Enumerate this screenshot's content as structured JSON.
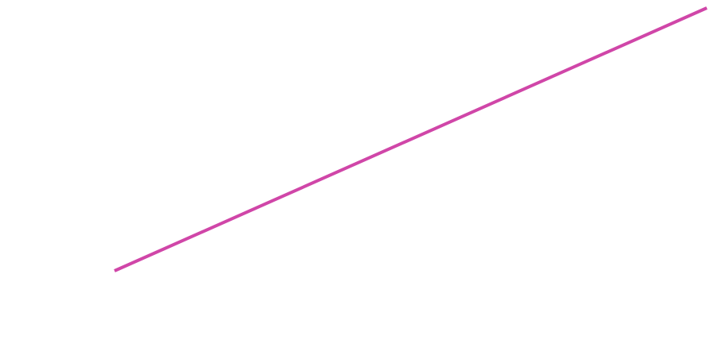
{
  "canvas": {
    "background_color": "#ffffff"
  },
  "line_segment": {
    "color": "#d046a8"
  }
}
